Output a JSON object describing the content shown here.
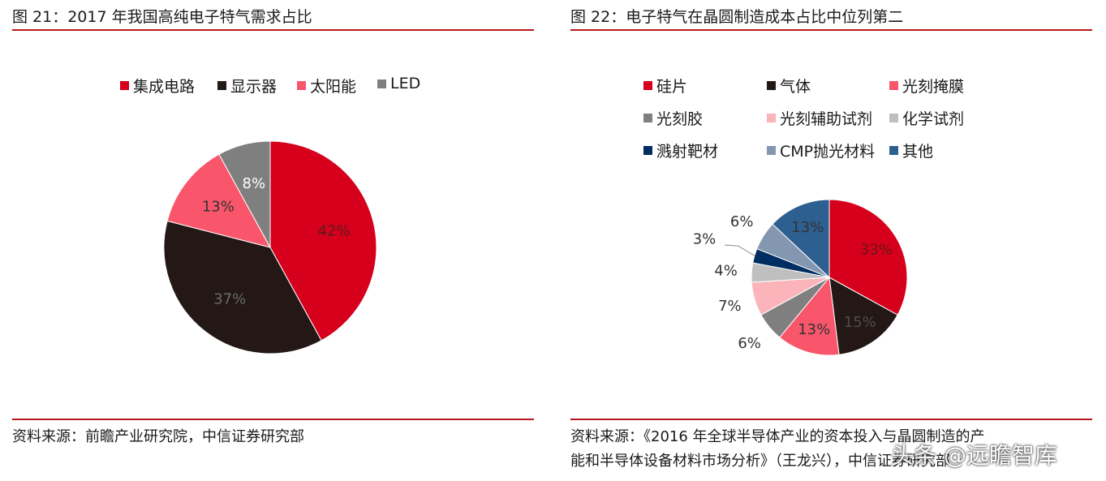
{
  "chart_data": [
    {
      "type": "pie",
      "title": "图 21：2017 年我国高纯电子特气需求占比",
      "legend_position": "top",
      "categories": [
        "集成电路",
        "显示器",
        "太阳能",
        "LED"
      ],
      "values": [
        42,
        37,
        13,
        8
      ],
      "value_labels": [
        "42%",
        "37%",
        "13%",
        "8%"
      ],
      "colors": [
        "#d6001c",
        "#231815",
        "#f9566b",
        "#7f7f7f"
      ],
      "label_colors": [
        "#5a1a1a",
        "#6b6b6b",
        "#333333",
        "#ffffff"
      ],
      "source": "资料来源：前瞻产业研究院，中信证券研究部"
    },
    {
      "type": "pie",
      "title": "图 22：电子特气在晶圆制造成本占比中位列第二",
      "legend_position": "top",
      "categories": [
        "硅片",
        "气体",
        "光刻掩膜",
        "光刻胶",
        "光刻辅助试剂",
        "化学试剂",
        "溅射靶材",
        "CMP抛光材料",
        "其他"
      ],
      "values": [
        33,
        15,
        13,
        6,
        7,
        4,
        3,
        6,
        13
      ],
      "value_labels": [
        "33%",
        "15%",
        "13%",
        "6%",
        "7%",
        "4%",
        "3%",
        "6%",
        "13%"
      ],
      "colors": [
        "#d6001c",
        "#231815",
        "#f9566b",
        "#7f7f7f",
        "#fbb4b9",
        "#bfbfbf",
        "#002d62",
        "#8497b0",
        "#2e5f91"
      ],
      "source_line1": "资料来源：《2016 年全球半导体产业的资本投入与晶圆制造的产",
      "source_line2": "能和半导体设备材料市场分析》（王龙兴），中信证券研究部"
    }
  ],
  "watermark": "头条 @远瞻智库"
}
